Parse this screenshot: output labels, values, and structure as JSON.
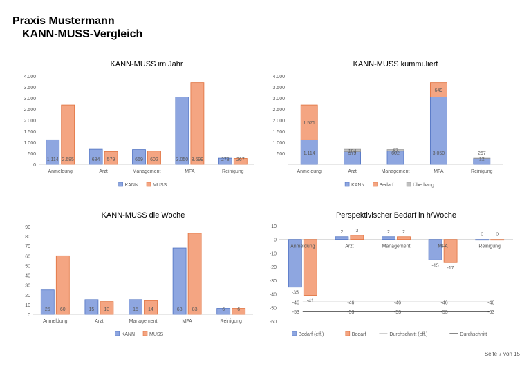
{
  "page": {
    "title_line1": "Praxis Mustermann",
    "title_line2": "KANN-MUSS-Vergleich",
    "footer": "Seite 7 von 15"
  },
  "colors": {
    "kann": "#8EA6E0",
    "kann_stroke": "#4F72C2",
    "muss": "#F4A582",
    "muss_stroke": "#E0703C",
    "ueberhang": "#BFBFBF",
    "ueberhang_stroke": "#9A9A9A",
    "avg_eff": "#B0B0B0",
    "avg": "#3A3A3A",
    "axis": "#D0D0D0",
    "text": "#595959"
  },
  "chart_data": [
    {
      "id": "jahr",
      "type": "bar",
      "title": "KANN-MUSS im Jahr",
      "categories": [
        "Anmeldung",
        "Arzt",
        "Management",
        "MFA",
        "Reinigung"
      ],
      "series": [
        {
          "name": "KANN",
          "values": [
            1114,
            684,
            669,
            3050,
            278
          ]
        },
        {
          "name": "MUSS",
          "values": [
            2685,
            579,
            602,
            3699,
            267
          ]
        }
      ],
      "value_labels": [
        [
          "1.114",
          "684",
          "669",
          "3.050",
          "278"
        ],
        [
          "2.685",
          "579",
          "602",
          "3.699",
          "267"
        ]
      ],
      "ylim": [
        0,
        4000
      ],
      "yticks": [
        0,
        500,
        1000,
        1500,
        2000,
        2500,
        3000,
        3500,
        4000
      ],
      "ytick_labels": [
        "0",
        "500",
        "1.000",
        "1.500",
        "2.000",
        "2.500",
        "3.000",
        "3.500",
        "4.000"
      ],
      "legend": [
        "KANN",
        "MUSS"
      ],
      "legend_position": "bottom"
    },
    {
      "id": "kumm",
      "type": "stacked-bar",
      "title": "KANN-MUSS  kummuliert",
      "categories": [
        "Anmeldung",
        "Arzt",
        "Management",
        "MFA",
        "Reinigung"
      ],
      "series": [
        {
          "name": "KANN",
          "values": [
            1114,
            579,
            602,
            3050,
            267
          ]
        },
        {
          "name": "Bedarf",
          "values": [
            1571,
            0,
            0,
            649,
            0
          ]
        },
        {
          "name": "Überhang",
          "values": [
            0,
            104,
            67,
            0,
            12
          ]
        }
      ],
      "value_labels": [
        [
          "1.114",
          "579",
          "602",
          "3.050",
          "267"
        ],
        [
          "1.571",
          "",
          "",
          "649",
          ""
        ],
        [
          "",
          "104",
          "67",
          "",
          "12"
        ]
      ],
      "ylim": [
        0,
        4000
      ],
      "yticks": [
        500,
        1000,
        1500,
        2000,
        2500,
        3000,
        3500,
        4000
      ],
      "ytick_labels": [
        "500",
        "1.000",
        "1.500",
        "2.000",
        "2.500",
        "3.000",
        "3.500",
        "4.000"
      ],
      "legend": [
        "KANN",
        "Bedarf",
        "Überhang"
      ],
      "legend_position": "bottom"
    },
    {
      "id": "woche",
      "type": "bar",
      "title": "KANN-MUSS die Woche",
      "categories": [
        "Anmeldung",
        "Arzt",
        "Management",
        "MFA",
        "Reinigung"
      ],
      "series": [
        {
          "name": "KANN",
          "values": [
            25,
            15,
            15,
            68,
            6
          ]
        },
        {
          "name": "MUSS",
          "values": [
            60,
            13,
            14,
            83,
            6
          ]
        }
      ],
      "value_labels": [
        [
          "25",
          "15",
          "15",
          "68",
          "6"
        ],
        [
          "60",
          "13",
          "14",
          "83",
          "6"
        ]
      ],
      "ylim": [
        0,
        90
      ],
      "yticks": [
        0,
        10,
        20,
        30,
        40,
        50,
        60,
        70,
        80,
        90
      ],
      "ytick_labels": [
        "0",
        "10",
        "20",
        "30",
        "40",
        "50",
        "60",
        "70",
        "80",
        "90"
      ],
      "legend": [
        "KANN",
        "MUSS"
      ],
      "legend_position": "bottom"
    },
    {
      "id": "perspektive",
      "type": "bar-line",
      "title": "Perspektivischer  Bedarf  in h/Woche",
      "categories": [
        "Anmeldung",
        "Arzt",
        "Management",
        "MFA",
        "Reinigung"
      ],
      "series": [
        {
          "name": "Bedarf (eff.)",
          "values": [
            -35,
            2,
            2,
            -15,
            0
          ]
        },
        {
          "name": "Bedarf",
          "values": [
            -41,
            3,
            2,
            -17,
            0
          ]
        }
      ],
      "value_labels": [
        [
          "-35",
          "2",
          "2",
          "-15",
          "0"
        ],
        [
          "-41",
          "3",
          "2",
          "-17",
          "0"
        ]
      ],
      "lines": [
        {
          "name": "Durchschnitt (eff.)",
          "value": -46,
          "label": "-46"
        },
        {
          "name": "Durchschnitt",
          "value": -53,
          "label": "-53"
        }
      ],
      "ylim": [
        -60,
        10
      ],
      "yticks": [
        -60,
        -50,
        -40,
        -30,
        -20,
        -10,
        0,
        10
      ],
      "ytick_labels": [
        "-60",
        "-50",
        "-40",
        "-30",
        "-20",
        "-10",
        "0",
        "10"
      ],
      "legend": [
        "Bedarf (eff.)",
        "Bedarf",
        "Durchschnitt (eff.)",
        "Durchschnitt"
      ],
      "legend_position": "bottom"
    }
  ]
}
